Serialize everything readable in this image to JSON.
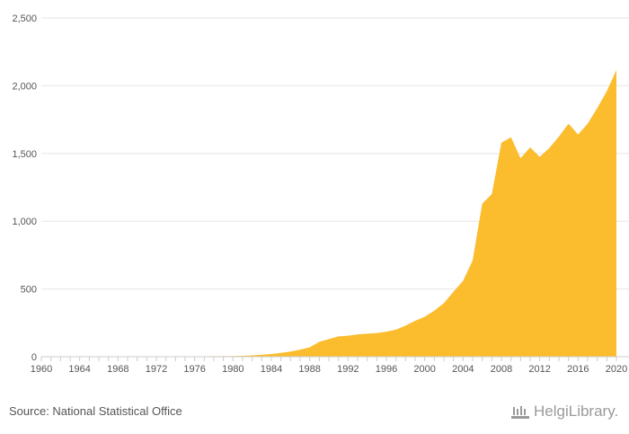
{
  "source": "Source: National Statistical Office",
  "brand": "HelgiLibrary.",
  "colors": {
    "area": "#FBBC2D",
    "grid": "#e6e6e6",
    "axis": "#cccccc",
    "text": "#555555",
    "brand": "#9a9a9a"
  },
  "chart_data": {
    "type": "area",
    "title": "",
    "xlabel": "",
    "ylabel": "",
    "grid": true,
    "ylim": [
      0,
      2500
    ],
    "xlim": [
      1960,
      2020
    ],
    "yticks": [
      0,
      500,
      1000,
      1500,
      2000,
      2500
    ],
    "ytick_labels": [
      "0",
      "500",
      "1,000",
      "1,500",
      "2,000",
      "2,500"
    ],
    "xtick_labels": [
      "1960",
      "1964",
      "1968",
      "1972",
      "1976",
      "1980",
      "1984",
      "1988",
      "1992",
      "1996",
      "2000",
      "2004",
      "2008",
      "2012",
      "2016",
      "2020"
    ],
    "series": [
      {
        "x": [
          1960,
          1961,
          1962,
          1963,
          1964,
          1965,
          1966,
          1967,
          1968,
          1969,
          1970,
          1971,
          1972,
          1973,
          1974,
          1975,
          1976,
          1977,
          1978,
          1979,
          1980,
          1981,
          1982,
          1983,
          1984,
          1985,
          1986,
          1987,
          1988,
          1989,
          1990,
          1991,
          1992,
          1993,
          1994,
          1995,
          1996,
          1997,
          1998,
          1999,
          2000,
          2001,
          2002,
          2003,
          2004,
          2005,
          2006,
          2007,
          2008,
          2009,
          2010,
          2011,
          2012,
          2013,
          2014,
          2015,
          2016,
          2017,
          2018,
          2019,
          2020
        ],
        "values": [
          2,
          2,
          2,
          2,
          2,
          2,
          2,
          2,
          2,
          2,
          2,
          2,
          2,
          3,
          3,
          3,
          3,
          3,
          4,
          4,
          5,
          7,
          10,
          15,
          20,
          28,
          38,
          52,
          70,
          110,
          130,
          150,
          155,
          165,
          170,
          175,
          185,
          200,
          230,
          265,
          295,
          340,
          395,
          480,
          560,
          710,
          1130,
          1200,
          1580,
          1620,
          1465,
          1545,
          1475,
          1540,
          1625,
          1720,
          1640,
          1720,
          1835,
          1960,
          2115
        ]
      }
    ]
  }
}
